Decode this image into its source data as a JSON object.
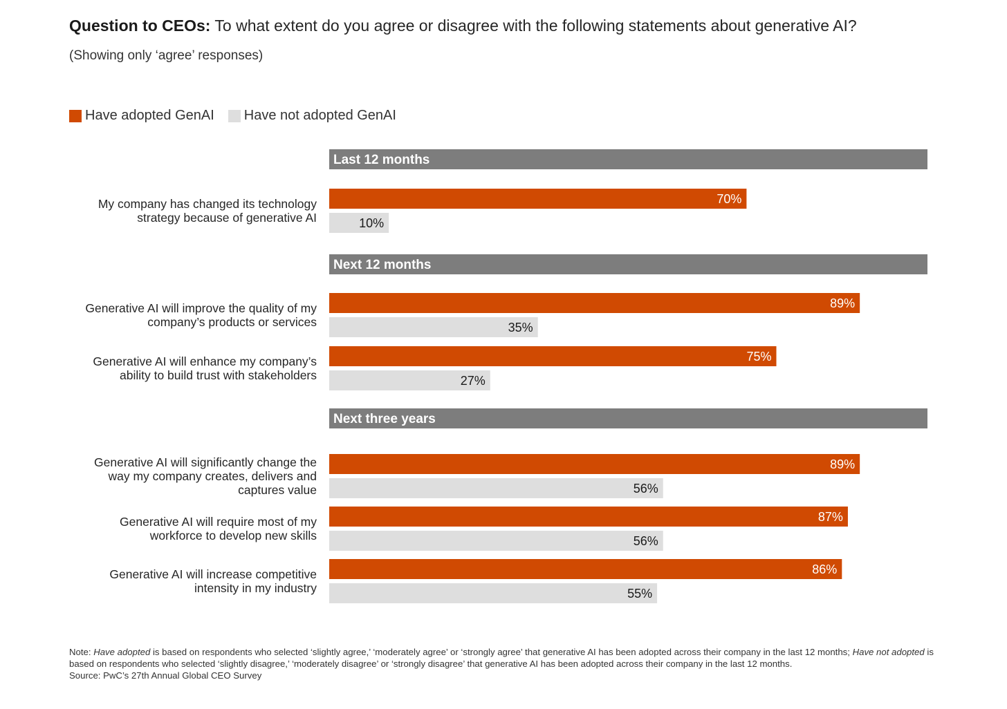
{
  "header": {
    "title_bold": "Question to CEOs:",
    "title_rest": " To what extent do you agree or disagree with the following statements about generative AI?",
    "subtitle": "(Showing only ‘agree’ responses)"
  },
  "colors": {
    "adopted": "#d04a02",
    "not_adopted": "#dedede",
    "section": "#7d7d7d"
  },
  "chart_data": {
    "type": "bar",
    "orientation": "horizontal",
    "xlim": [
      0,
      100
    ],
    "value_suffix": "%",
    "legend": {
      "placement": "top-left"
    },
    "series": [
      {
        "name": "Have adopted GenAI",
        "key": "adopted"
      },
      {
        "name": "Have not adopted GenAI",
        "key": "not_adopted"
      }
    ],
    "groups": [
      {
        "title": "Last 12 months",
        "items": [
          {
            "label": [
              "My company has changed its technology",
              "strategy because of generative AI"
            ],
            "adopted": 70,
            "not_adopted": 10
          }
        ]
      },
      {
        "title": "Next 12 months",
        "items": [
          {
            "label": [
              "Generative AI will improve the quality of my",
              "company’s products or services"
            ],
            "adopted": 89,
            "not_adopted": 35
          },
          {
            "label": [
              "Generative AI will enhance my company’s",
              "ability to build trust with stakeholders"
            ],
            "adopted": 75,
            "not_adopted": 27
          }
        ]
      },
      {
        "title": "Next three years",
        "items": [
          {
            "label": [
              "Generative AI will significantly change the",
              "way my company creates, delivers and",
              "captures value"
            ],
            "adopted": 89,
            "not_adopted": 56
          },
          {
            "label": [
              "Generative AI will require most of my",
              "workforce to develop new skills"
            ],
            "adopted": 87,
            "not_adopted": 56
          },
          {
            "label": [
              "Generative AI will increase competitive",
              "intensity in my industry"
            ],
            "adopted": 86,
            "not_adopted": 55
          }
        ]
      }
    ]
  },
  "notes": {
    "note_prefix": "Note: ",
    "have_adopted": "Have adopted",
    "adopted_text": " is based on respondents who selected ‘slightly agree,’ ‘moderately agree’ or ‘strongly agree’ that generative AI has been adopted across their company in the last 12 months; ",
    "have_not_adopted": "Have not adopted",
    "not_adopted_text": " is based on respondents who selected ‘slightly disagree,’ ‘moderately disagree’ or ‘strongly disagree’ that generative AI has been adopted across their company in the last 12 months.",
    "source": "Source: PwC’s 27th Annual Global CEO Survey"
  }
}
